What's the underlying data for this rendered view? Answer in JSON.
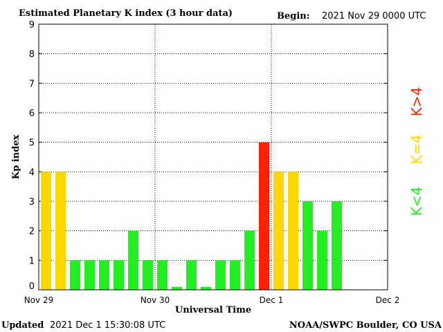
{
  "header": {
    "title": "Estimated Planetary K index (3 hour data)",
    "begin_label": "Begin:",
    "begin_value": "2021 Nov 29 0000 UTC"
  },
  "footer": {
    "updated_label": "Updated",
    "updated_value": "2021 Dec  1 15:30:08 UTC",
    "source": "NOAA/SWPC Boulder, CO USA"
  },
  "legend": {
    "items": [
      {
        "label": "K>4",
        "color": "#ff2000"
      },
      {
        "label": "K=4",
        "color": "#ffd700"
      },
      {
        "label": "K<4",
        "color": "#22ee22"
      }
    ]
  },
  "colors": {
    "below_4": "#22ee22",
    "equal_4": "#ffd700",
    "above_4": "#ff2000"
  },
  "chart_data": {
    "type": "bar",
    "title": "Estimated Planetary K index (3 hour data)",
    "xlabel": "Universal Time",
    "ylabel": "Kp index",
    "ylim": [
      0,
      9
    ],
    "yticks": [
      0,
      1,
      2,
      3,
      4,
      5,
      6,
      7,
      8,
      9
    ],
    "xticks": [
      "Nov 29",
      "Nov 30",
      "Dec 1",
      "Dec 2"
    ],
    "slots_total": 24,
    "grid": true,
    "values": [
      4,
      4,
      1,
      1,
      1,
      1,
      2,
      1,
      1,
      0.1,
      1,
      0.1,
      1,
      1,
      2,
      5,
      4,
      4,
      3,
      2,
      3
    ]
  }
}
